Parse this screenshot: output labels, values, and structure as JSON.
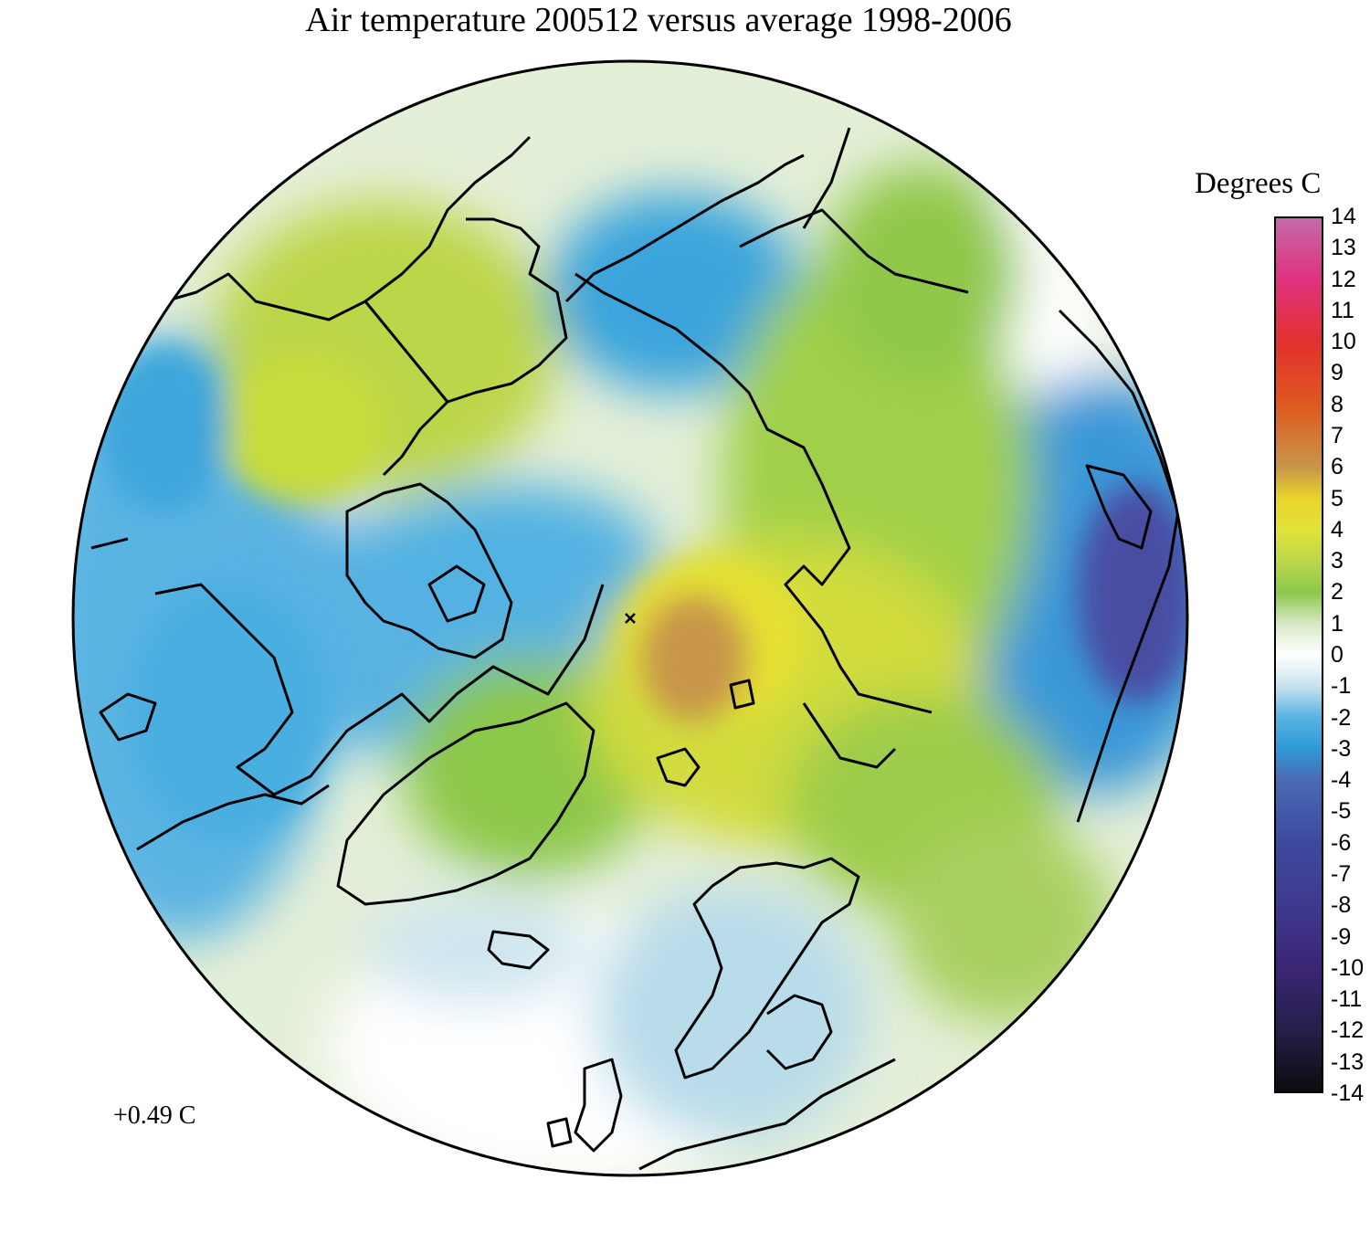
{
  "title": "Air temperature 200512 versus average 1998-2006",
  "legend": {
    "title": "Degrees C",
    "ticks": [
      "14",
      "13",
      "12",
      "11",
      "10",
      "9",
      "8",
      "7",
      "6",
      "5",
      "4",
      "3",
      "2",
      "1",
      "0",
      "-1",
      "-2",
      "-3",
      "-4",
      "-5",
      "-6",
      "-7",
      "-8",
      "-9",
      "-10",
      "-11",
      "-12",
      "-13",
      "-14"
    ],
    "range": [
      -14,
      14
    ],
    "stops": [
      {
        "v": 14,
        "c": "#c46aa8"
      },
      {
        "v": 12,
        "c": "#e0317e"
      },
      {
        "v": 10,
        "c": "#e2312d"
      },
      {
        "v": 8,
        "c": "#de5a20"
      },
      {
        "v": 6,
        "c": "#c8964a"
      },
      {
        "v": 5,
        "c": "#e8d42a"
      },
      {
        "v": 4,
        "c": "#e2e23a"
      },
      {
        "v": 3,
        "c": "#bcd64a"
      },
      {
        "v": 2,
        "c": "#8cc84a"
      },
      {
        "v": 1,
        "c": "#d8e8c4"
      },
      {
        "v": 0,
        "c": "#ffffff"
      },
      {
        "v": -1,
        "c": "#c8e2ee"
      },
      {
        "v": -2,
        "c": "#58b4e2"
      },
      {
        "v": -3,
        "c": "#2e9ad8"
      },
      {
        "v": -4,
        "c": "#4a6ab4"
      },
      {
        "v": -6,
        "c": "#3c4a9e"
      },
      {
        "v": -8,
        "c": "#3e3a8e"
      },
      {
        "v": -10,
        "c": "#3c2676"
      },
      {
        "v": -12,
        "c": "#24204a"
      },
      {
        "v": -14,
        "c": "#0c0c10"
      }
    ]
  },
  "mean_anomaly": "+0.49 C",
  "colors": {
    "warm_peak": "#c8964a",
    "yellow": "#e2e23a",
    "green": "#a8d050",
    "pale_green": "#d8e8c4",
    "pale_blue": "#c8e2ee",
    "blue": "#52b2e2",
    "deep_blue": "#4a5aa8",
    "coastline": "#000000"
  }
}
